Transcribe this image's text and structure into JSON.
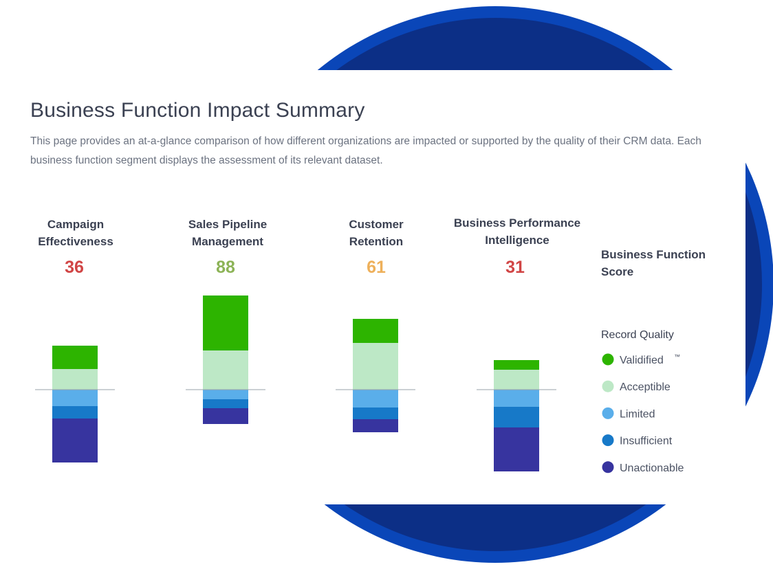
{
  "page": {
    "title": "Business Function Impact Summary",
    "description": "This page provides an at-a-glance comparison of how different organizations are impacted or supported by the quality of their CRM data. Each business function segment displays the assessment of its relevant dataset."
  },
  "colors": {
    "validified": "#2db400",
    "acceptible": "#bde8c6",
    "limited": "#5aaeea",
    "insufficient": "#1779c8",
    "unactionable": "#37349f",
    "score_low": "#d14545",
    "score_high": "#8cb356",
    "score_mid": "#eeb05a",
    "backdrop_dark": "#0c2f86",
    "backdrop_ring": "#0a46b8"
  },
  "legend": {
    "title_line1": "Business Function",
    "title_line2": "Score",
    "subtitle": "Record Quality",
    "tm": "™",
    "items": [
      {
        "key": "validified",
        "label": "Validified"
      },
      {
        "key": "acceptible",
        "label": "Acceptible"
      },
      {
        "key": "limited",
        "label": "Limited"
      },
      {
        "key": "insufficient",
        "label": "Insufficient"
      },
      {
        "key": "unactionable",
        "label": "Unactionable"
      }
    ]
  },
  "chart_data": {
    "type": "bar",
    "stacking": "diverging",
    "unit": "relative share of records",
    "positive_series": [
      "acceptible",
      "validified"
    ],
    "negative_series": [
      "limited",
      "insufficient",
      "unactionable"
    ],
    "functions": [
      {
        "line1": "Campaign",
        "line2": "Effectiveness",
        "score": 36,
        "score_color": "score_low",
        "segments": {
          "validified": 34,
          "acceptible": 30,
          "limited": 24,
          "insufficient": 18,
          "unactionable": 64
        }
      },
      {
        "line1": "Sales Pipeline",
        "line2": "Management",
        "score": 88,
        "score_color": "score_high",
        "segments": {
          "validified": 80,
          "acceptible": 57,
          "limited": 14,
          "insufficient": 13,
          "unactionable": 23
        }
      },
      {
        "line1": "Customer",
        "line2": "Retention",
        "score": 61,
        "score_color": "score_mid",
        "segments": {
          "validified": 35,
          "acceptible": 68,
          "limited": 26,
          "insufficient": 17,
          "unactionable": 19
        }
      },
      {
        "line1": "Business Performance",
        "line2": "Intelligence",
        "score": 31,
        "score_color": "score_low",
        "segments": {
          "validified": 14,
          "acceptible": 29,
          "limited": 25,
          "insufficient": 30,
          "unactionable": 64
        }
      }
    ]
  }
}
